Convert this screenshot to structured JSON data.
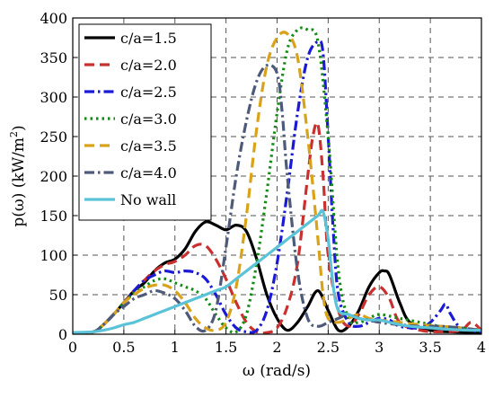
{
  "chart_data": {
    "type": "line",
    "title": "",
    "xlabel": "ω (rad/s)",
    "ylabel_main": "p(ω) (kW/m",
    "ylabel_sup": "2",
    "ylabel_close": ")",
    "xlim": [
      0,
      4
    ],
    "ylim": [
      0,
      400
    ],
    "xticks": [
      0,
      0.5,
      1,
      1.5,
      2,
      2.5,
      3,
      3.5,
      4
    ],
    "xtick_labels": [
      "0",
      "0.5",
      "1",
      "1.5",
      "2",
      "2.5",
      "3",
      "3.5",
      "4"
    ],
    "yticks": [
      0,
      50,
      100,
      150,
      200,
      250,
      300,
      350,
      400
    ],
    "ytick_labels": [
      "0",
      "50",
      "100",
      "150",
      "200",
      "250",
      "300",
      "350",
      "400"
    ],
    "grid": true,
    "legend_position": "top-left",
    "series": [
      {
        "name": "c/a=1.5",
        "color": "#000000",
        "dash": "solid",
        "x": [
          0,
          0.2,
          0.3,
          0.4,
          0.5,
          0.6,
          0.7,
          0.8,
          0.9,
          1.0,
          1.1,
          1.2,
          1.3,
          1.4,
          1.5,
          1.6,
          1.7,
          1.8,
          1.9,
          2.0,
          2.1,
          2.2,
          2.3,
          2.4,
          2.5,
          2.6,
          2.7,
          2.8,
          2.9,
          3.0,
          3.05,
          3.1,
          3.2,
          3.3,
          3.5,
          3.7,
          4.0
        ],
        "y": [
          2,
          3,
          12,
          25,
          40,
          55,
          65,
          80,
          90,
          95,
          108,
          130,
          142,
          138,
          132,
          138,
          130,
          95,
          50,
          20,
          5,
          15,
          35,
          55,
          30,
          5,
          10,
          30,
          60,
          78,
          80,
          75,
          40,
          15,
          5,
          3,
          2
        ]
      },
      {
        "name": "c/a=2.0",
        "color": "#c8312f",
        "dash": "dash",
        "x": [
          0,
          0.2,
          0.3,
          0.4,
          0.5,
          0.6,
          0.7,
          0.8,
          0.9,
          1.0,
          1.1,
          1.2,
          1.3,
          1.4,
          1.5,
          1.6,
          1.7,
          1.8,
          1.9,
          2.0,
          2.1,
          2.2,
          2.3,
          2.35,
          2.4,
          2.45,
          2.5,
          2.6,
          2.7,
          2.8,
          2.9,
          3.0,
          3.1,
          3.2,
          3.4,
          3.6,
          3.8,
          3.9,
          4.0
        ],
        "y": [
          2,
          3,
          12,
          25,
          40,
          55,
          68,
          80,
          88,
          92,
          100,
          112,
          112,
          95,
          70,
          40,
          15,
          3,
          2,
          8,
          35,
          90,
          200,
          250,
          265,
          200,
          100,
          30,
          10,
          25,
          50,
          60,
          45,
          15,
          5,
          3,
          5,
          15,
          5
        ]
      },
      {
        "name": "c/a=2.5",
        "color": "#1a1ad6",
        "dash": "dashdot",
        "x": [
          0,
          0.2,
          0.3,
          0.4,
          0.5,
          0.6,
          0.7,
          0.8,
          0.9,
          1.0,
          1.1,
          1.2,
          1.3,
          1.4,
          1.5,
          1.6,
          1.7,
          1.8,
          1.9,
          2.0,
          2.1,
          2.2,
          2.3,
          2.4,
          2.45,
          2.5,
          2.55,
          2.6,
          2.7,
          2.8,
          2.9,
          3.0,
          3.1,
          3.2,
          3.4,
          3.5,
          3.6,
          3.65,
          3.7,
          3.8,
          4.0
        ],
        "y": [
          2,
          3,
          12,
          25,
          40,
          55,
          68,
          75,
          80,
          78,
          80,
          78,
          70,
          50,
          25,
          8,
          3,
          5,
          30,
          90,
          180,
          280,
          350,
          370,
          355,
          250,
          130,
          50,
          15,
          10,
          15,
          20,
          18,
          10,
          8,
          15,
          30,
          38,
          25,
          8,
          3
        ]
      },
      {
        "name": "c/a=3.0",
        "color": "#138a13",
        "dash": "dot",
        "x": [
          0,
          0.2,
          0.3,
          0.4,
          0.5,
          0.6,
          0.7,
          0.8,
          0.9,
          1.0,
          1.1,
          1.2,
          1.3,
          1.4,
          1.5,
          1.6,
          1.7,
          1.8,
          1.9,
          2.0,
          2.1,
          2.2,
          2.3,
          2.4,
          2.5,
          2.6,
          2.7,
          2.8,
          2.9,
          3.0,
          3.2,
          3.4,
          3.6,
          3.8,
          4.0
        ],
        "y": [
          2,
          3,
          12,
          25,
          40,
          52,
          60,
          68,
          70,
          65,
          60,
          55,
          45,
          25,
          8,
          3,
          25,
          90,
          180,
          280,
          360,
          385,
          385,
          370,
          250,
          80,
          20,
          15,
          20,
          25,
          20,
          15,
          10,
          8,
          5
        ]
      },
      {
        "name": "c/a=3.5",
        "color": "#d9a21b",
        "dash": "dash",
        "x": [
          0,
          0.2,
          0.3,
          0.4,
          0.5,
          0.6,
          0.7,
          0.8,
          0.9,
          1.0,
          1.1,
          1.2,
          1.3,
          1.4,
          1.5,
          1.6,
          1.7,
          1.8,
          1.9,
          2.0,
          2.1,
          2.2,
          2.3,
          2.4,
          2.45,
          2.5,
          2.6,
          2.7,
          2.8,
          2.9,
          3.0,
          3.2,
          3.4,
          3.6,
          3.8,
          4.0
        ],
        "y": [
          2,
          3,
          12,
          25,
          40,
          50,
          58,
          62,
          62,
          55,
          40,
          20,
          8,
          5,
          15,
          60,
          150,
          260,
          340,
          375,
          380,
          350,
          250,
          120,
          50,
          20,
          15,
          20,
          25,
          20,
          18,
          15,
          12,
          10,
          8,
          5
        ]
      },
      {
        "name": "c/a=4.0",
        "color": "#4e5a7a",
        "dash": "dashdot",
        "x": [
          0,
          0.2,
          0.3,
          0.4,
          0.5,
          0.6,
          0.7,
          0.8,
          0.9,
          1.0,
          1.1,
          1.2,
          1.3,
          1.4,
          1.5,
          1.6,
          1.7,
          1.8,
          1.9,
          2.0,
          2.05,
          2.1,
          2.2,
          2.3,
          2.4,
          2.5,
          2.6,
          2.7,
          2.8,
          2.9,
          3.0,
          3.2,
          3.4,
          3.6,
          3.8,
          4.0
        ],
        "y": [
          2,
          3,
          12,
          25,
          35,
          45,
          50,
          55,
          52,
          45,
          30,
          10,
          5,
          30,
          110,
          200,
          270,
          320,
          340,
          330,
          280,
          200,
          80,
          20,
          10,
          15,
          20,
          25,
          20,
          18,
          15,
          12,
          10,
          10,
          8,
          5
        ]
      },
      {
        "name": "No wall",
        "color": "#5bc3d8",
        "dash": "solid",
        "x": [
          0,
          0.2,
          0.3,
          0.4,
          0.5,
          0.6,
          0.7,
          0.8,
          0.9,
          1.0,
          1.1,
          1.2,
          1.3,
          1.4,
          1.5,
          1.6,
          1.7,
          1.8,
          1.9,
          2.0,
          2.1,
          2.2,
          2.3,
          2.4,
          2.45,
          2.5,
          2.55,
          2.6,
          2.7,
          2.8,
          2.9,
          3.0,
          3.1,
          3.2,
          3.3,
          3.5,
          3.7,
          3.9,
          4.0
        ],
        "y": [
          2,
          3,
          5,
          8,
          12,
          15,
          20,
          25,
          30,
          35,
          40,
          45,
          50,
          55,
          60,
          70,
          80,
          90,
          100,
          110,
          120,
          130,
          140,
          150,
          155,
          120,
          60,
          30,
          25,
          20,
          18,
          18,
          15,
          12,
          10,
          8,
          6,
          5,
          5
        ]
      }
    ]
  }
}
